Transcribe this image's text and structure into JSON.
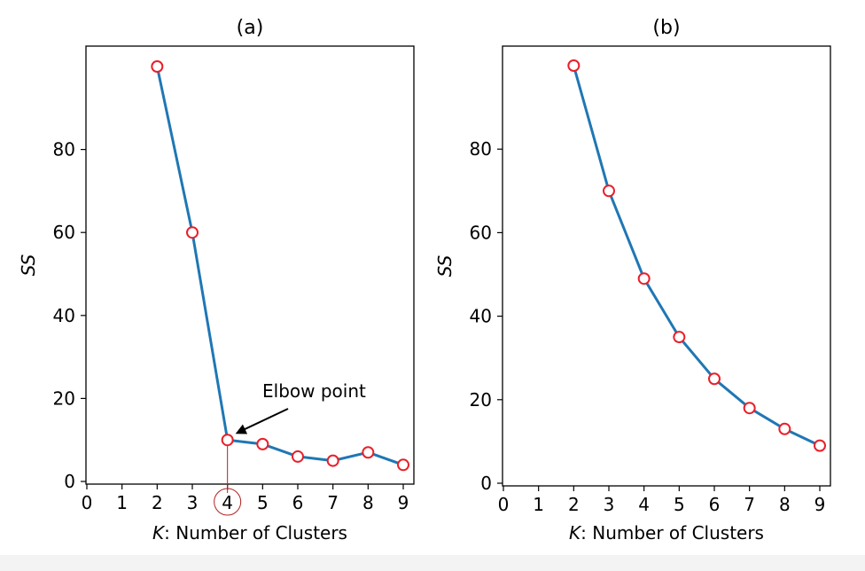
{
  "colors": {
    "line": "#1f77b4",
    "marker_edge": "#e8202a",
    "marker_face": "#ffffff",
    "annotation_circle": "#b22222"
  },
  "chart_data": [
    {
      "type": "line",
      "title": "(a)",
      "xlabel_italic": "K",
      "xlabel_rest": ": Number of Clusters",
      "ylabel": "SS",
      "xlim": [
        0,
        9
      ],
      "ylim": [
        0,
        100
      ],
      "xticks": [
        0,
        1,
        2,
        3,
        4,
        5,
        6,
        7,
        8,
        9
      ],
      "yticks": [
        0,
        20,
        40,
        60,
        80
      ],
      "x": [
        2,
        3,
        4,
        5,
        6,
        7,
        8,
        9
      ],
      "y": [
        100,
        60,
        10,
        9,
        6,
        5,
        7,
        4
      ],
      "annotation": {
        "text": "Elbow point",
        "x": 4,
        "y": 10
      },
      "highlight_x_tick": 4
    },
    {
      "type": "line",
      "title": "(b)",
      "xlabel_italic": "K",
      "xlabel_rest": ": Number of Clusters",
      "ylabel": "SS",
      "xlim": [
        0,
        9
      ],
      "ylim": [
        0,
        100
      ],
      "xticks": [
        0,
        1,
        2,
        3,
        4,
        5,
        6,
        7,
        8,
        9
      ],
      "yticks": [
        0,
        20,
        40,
        60,
        80
      ],
      "x": [
        2,
        3,
        4,
        5,
        6,
        7,
        8,
        9
      ],
      "y": [
        100,
        70,
        49,
        35,
        25,
        18,
        13,
        9
      ]
    }
  ]
}
